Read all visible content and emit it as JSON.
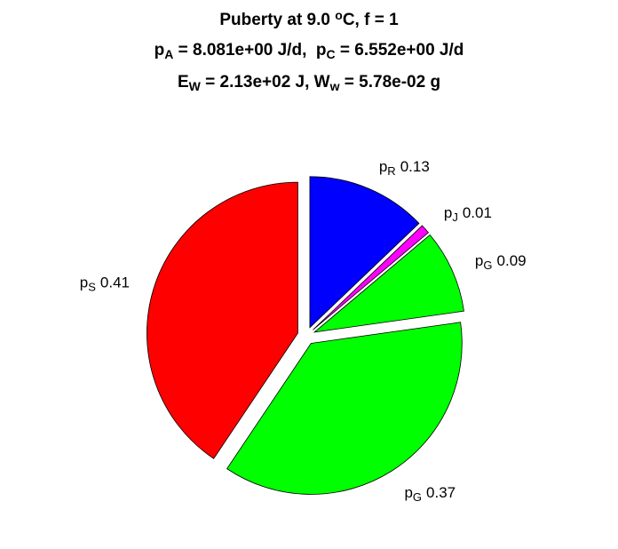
{
  "chart_data": {
    "type": "pie",
    "title": [
      [
        "Puberty at 9.0 ",
        {
          "sup": "o"
        },
        "C, f = 1"
      ],
      [
        "p",
        {
          "sub": "A"
        },
        " = 8.081e+00 J/d,  p",
        {
          "sub": "C"
        },
        " = 6.552e+00 J/d"
      ],
      [
        "E",
        {
          "sub": "W"
        },
        " = 2.13e+02 J, W",
        {
          "sub": "w"
        },
        " = 5.78e-02 g"
      ]
    ],
    "categories": [
      {
        "text": "p",
        "sub": "R"
      },
      {
        "text": "p",
        "sub": "J"
      },
      {
        "text": "p",
        "sub": "G"
      },
      {
        "text": "p",
        "sub": "G"
      },
      {
        "text": "p",
        "sub": "S"
      }
    ],
    "values": [
      0.13,
      0.01,
      0.09,
      0.37,
      0.41
    ],
    "colors": [
      "#0000ff",
      "#ff00ff",
      "#00ff00",
      "#00ff00",
      "#ff0000"
    ],
    "exploded": true
  }
}
